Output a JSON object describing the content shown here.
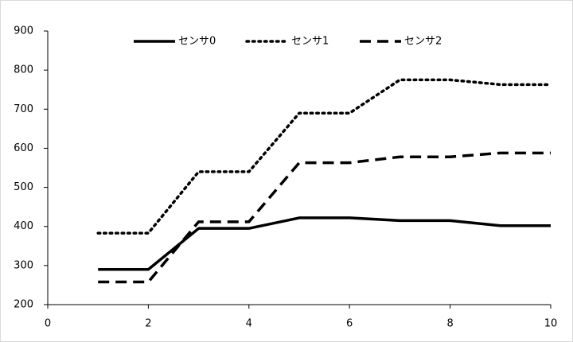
{
  "chart_data": {
    "type": "line",
    "x": [
      1,
      2,
      3,
      4,
      5,
      6,
      7,
      8,
      9,
      10
    ],
    "series": [
      {
        "name": "センサ0",
        "color": "#000000",
        "dash": "solid",
        "values": [
          290,
          290,
          395,
          395,
          422,
          422,
          415,
          415,
          402,
          402
        ]
      },
      {
        "name": "センサ1",
        "color": "#000000",
        "dash": "dotted",
        "values": [
          383,
          383,
          540,
          540,
          690,
          690,
          775,
          775,
          763,
          763
        ]
      },
      {
        "name": "センサ2",
        "color": "#000000",
        "dash": "dashed",
        "values": [
          258,
          258,
          412,
          412,
          563,
          563,
          578,
          578,
          588,
          588
        ]
      }
    ],
    "xlim": [
      0,
      10
    ],
    "xticks": [
      0,
      2,
      4,
      6,
      8,
      10
    ],
    "ylim": [
      200,
      900
    ],
    "yticks": [
      200,
      300,
      400,
      500,
      600,
      700,
      800,
      900
    ],
    "grid": false,
    "legend": "top"
  }
}
